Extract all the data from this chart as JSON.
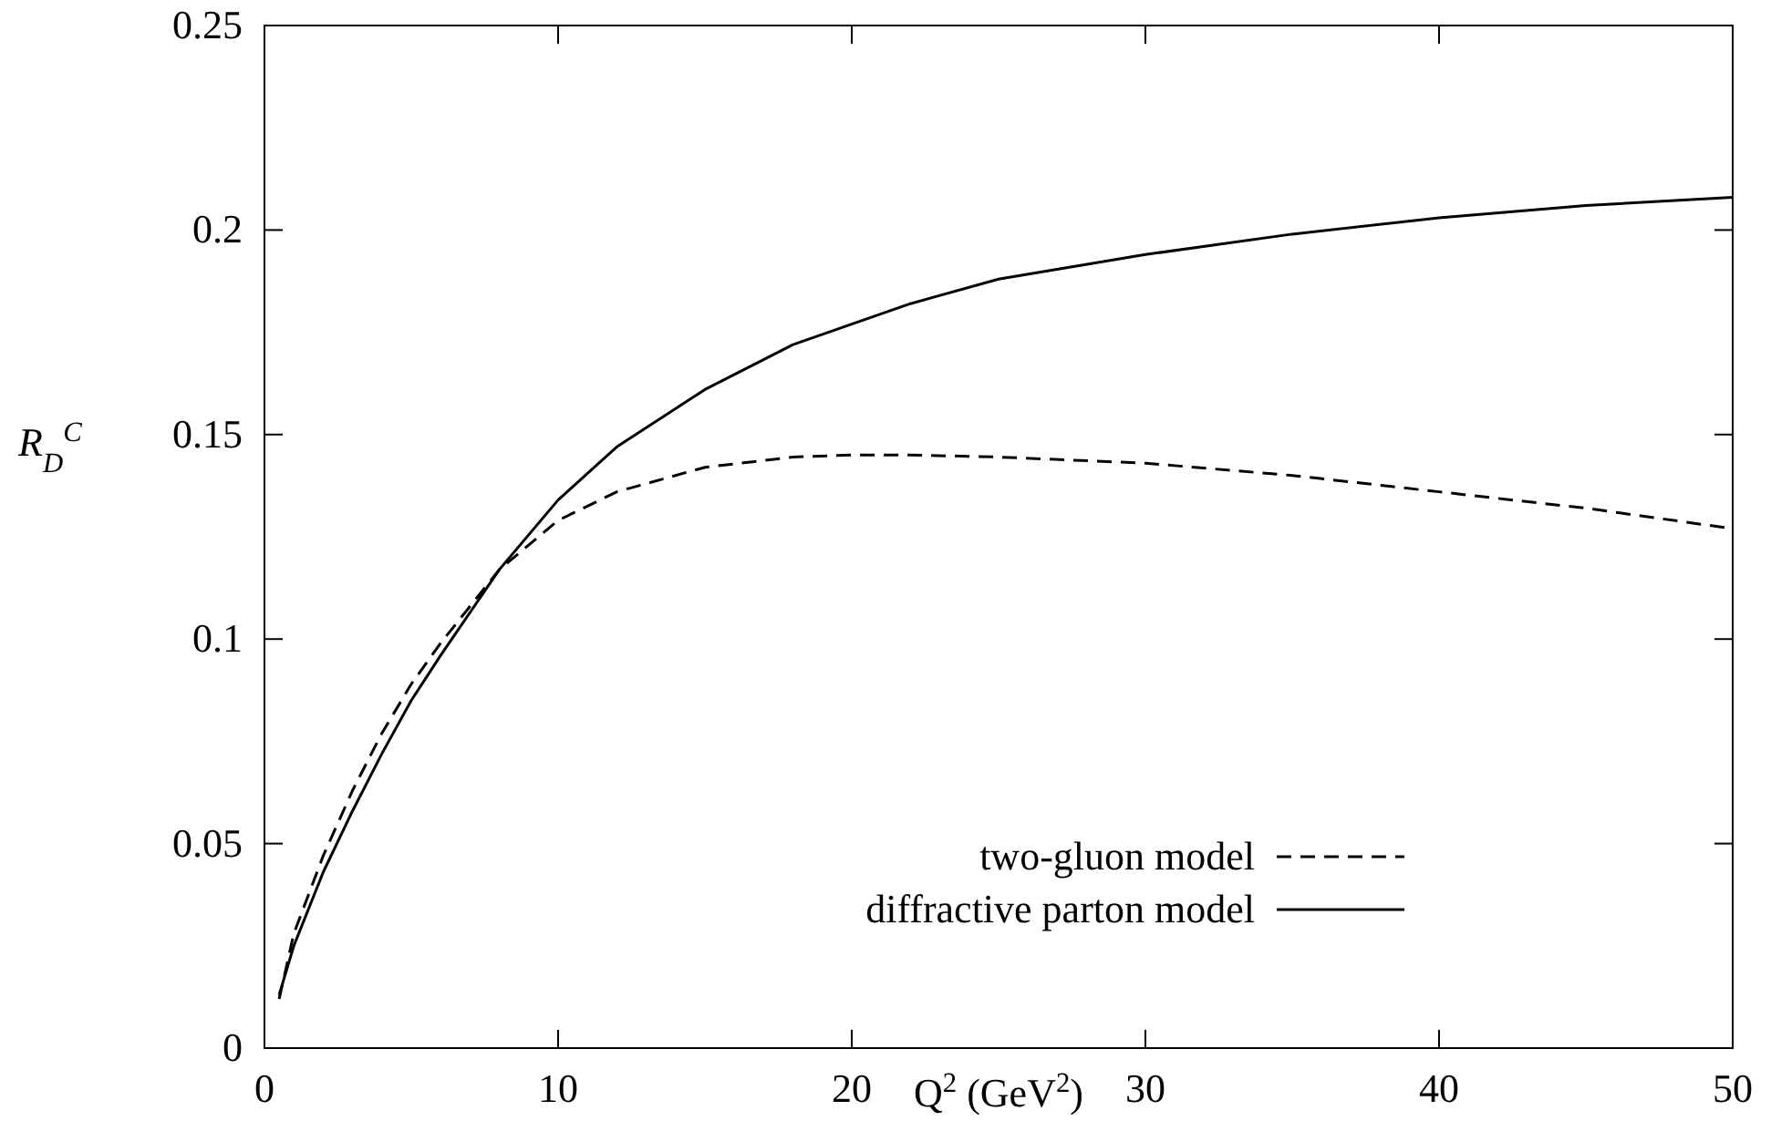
{
  "chart_data": {
    "type": "line",
    "xlabel": "Q$^{2}$ (GeV$^{2}$)",
    "ylabel": "R$_{D}$$^{C}$",
    "xlim": [
      0,
      50
    ],
    "ylim": [
      0,
      0.25
    ],
    "xticks": [
      0,
      10,
      20,
      30,
      40,
      50
    ],
    "yticks": [
      0,
      0.05,
      0.1,
      0.15,
      0.2,
      0.25
    ],
    "legend": "bottom",
    "grid": false,
    "marker": "none",
    "series": [
      {
        "name": "two-gluon model",
        "color": "#000000",
        "line_style": "dashed",
        "x": [
          0.5,
          1,
          2,
          3,
          4,
          5,
          6,
          8,
          10,
          12,
          15,
          18,
          20,
          22,
          25,
          30,
          35,
          40,
          45,
          50
        ],
        "values": [
          0.012,
          0.028,
          0.047,
          0.063,
          0.077,
          0.089,
          0.099,
          0.117,
          0.129,
          0.136,
          0.142,
          0.1445,
          0.145,
          0.145,
          0.1445,
          0.143,
          0.14,
          0.136,
          0.132,
          0.127
        ]
      },
      {
        "name": "diffractive parton model",
        "color": "#000000",
        "line_style": "solid",
        "x": [
          0.5,
          1,
          2,
          3,
          4,
          5,
          6,
          8,
          10,
          12,
          15,
          18,
          20,
          22,
          25,
          30,
          35,
          40,
          45,
          50
        ],
        "values": [
          0.013,
          0.025,
          0.043,
          0.058,
          0.072,
          0.085,
          0.096,
          0.117,
          0.134,
          0.147,
          0.161,
          0.172,
          0.177,
          0.182,
          0.188,
          0.194,
          0.199,
          0.203,
          0.206,
          0.208
        ]
      }
    ]
  }
}
